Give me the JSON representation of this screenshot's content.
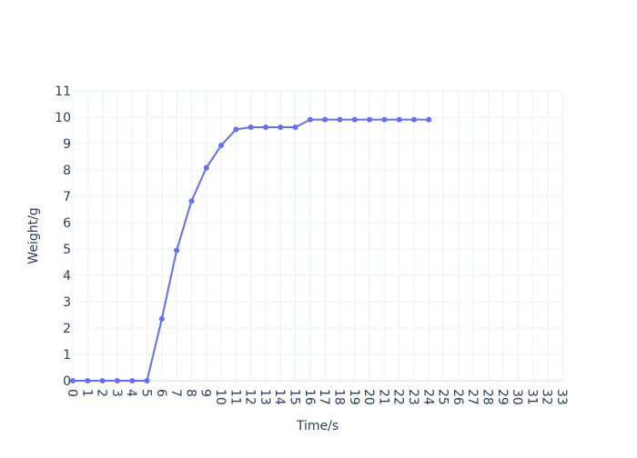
{
  "chart_data": {
    "type": "line",
    "title": "",
    "xlabel": "Time/s",
    "ylabel": "Weight/g",
    "xlim": [
      0,
      33
    ],
    "ylim": [
      0,
      11
    ],
    "x_ticks": [
      0,
      1,
      2,
      3,
      4,
      5,
      6,
      7,
      8,
      9,
      10,
      11,
      12,
      13,
      14,
      15,
      16,
      17,
      18,
      19,
      20,
      21,
      22,
      23,
      24,
      25,
      26,
      27,
      28,
      29,
      30,
      31,
      32,
      33
    ],
    "y_ticks": [
      0,
      1,
      2,
      3,
      4,
      5,
      6,
      7,
      8,
      9,
      10,
      11
    ],
    "grid": true,
    "line_color": "#636efa",
    "series": [
      {
        "x": [
          0,
          1,
          2,
          3,
          4,
          5,
          6,
          7,
          8,
          9,
          10,
          11,
          12,
          13,
          14,
          15,
          16,
          17,
          18,
          19,
          20,
          21,
          22,
          23,
          24
        ],
        "values": [
          0,
          0,
          0,
          0,
          0,
          0,
          2.35,
          4.95,
          6.82,
          8.08,
          8.93,
          9.54,
          9.62,
          9.62,
          9.62,
          9.62,
          9.91,
          9.91,
          9.91,
          9.91,
          9.91,
          9.91,
          9.91,
          9.91,
          9.91
        ]
      }
    ]
  }
}
